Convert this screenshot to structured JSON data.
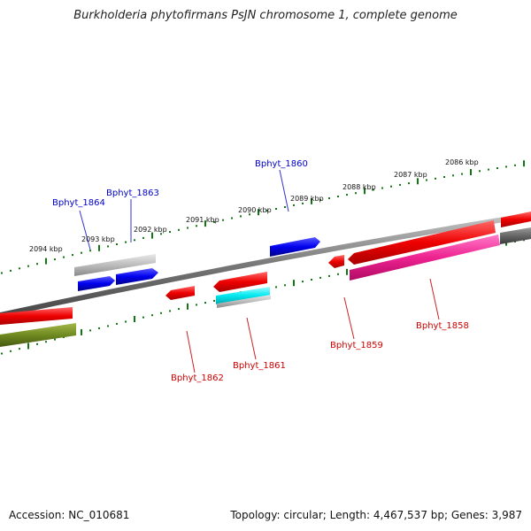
{
  "title": "Burkholderia phytofirmans PsJN chromosome 1, complete genome",
  "footer": {
    "accession": "Accession: NC_010681",
    "summary": "Topology: circular; Length: 4,467,537 bp; Genes: 3,987"
  },
  "colors": {
    "forward_gene": "#0000ee",
    "reverse_gene": "#ee0000",
    "ruler": "#117711",
    "backbone": "#777777",
    "label_forward": "#0000cc",
    "label_reverse": "#cc0000"
  },
  "ruler_ticks": [
    "2094 kbp",
    "2093 kbp",
    "2092 kbp",
    "2091 kbp",
    "2090 kbp",
    "2089 kbp",
    "2088 kbp",
    "2087 kbp",
    "2086 kbp"
  ],
  "genes_forward": [
    "Bphyt_1864",
    "Bphyt_1863",
    "Bphyt_1860"
  ],
  "genes_reverse": [
    "Bphyt_1862",
    "Bphyt_1861",
    "Bphyt_1859",
    "Bphyt_1858"
  ]
}
